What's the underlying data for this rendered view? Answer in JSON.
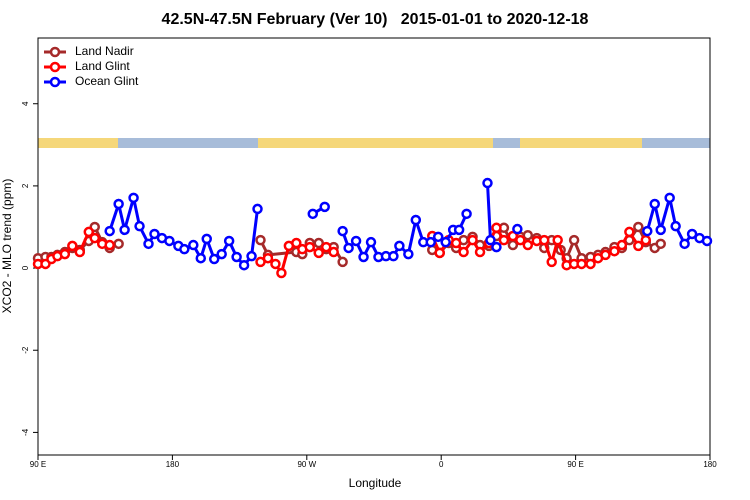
{
  "chart_data": {
    "type": "line",
    "title": "42.5N-47.5N February (Ver 10)   2015-01-01 to 2020-12-18",
    "x_label": "Longitude",
    "y_label": "XCO2 - MLO trend (ppm)",
    "xlim": [
      90,
      540
    ],
    "ylim": [
      -4.55,
      5.6
    ],
    "xticks": [
      {
        "value": 90,
        "label": "90 E"
      },
      180,
      {
        "value": 270,
        "label": "90 W"
      },
      {
        "value": 360,
        "label": "0"
      },
      {
        "value": 450,
        "label": "90 E"
      },
      {
        "value": 540,
        "label": "180"
      }
    ],
    "yticks": [
      -4,
      -2,
      0,
      2,
      4
    ],
    "legend": "top-left",
    "series": [
      {
        "name": "Land Nadir",
        "color": "#a52a2a",
        "x": [
          90,
          95,
          99,
          103,
          108,
          113,
          118,
          124,
          128,
          133,
          138,
          144,
          null,
          239,
          244,
          263,
          267,
          272,
          278,
          283,
          288,
          294,
          null,
          354,
          359,
          365,
          370,
          375,
          381,
          386,
          392,
          397,
          402,
          408,
          413,
          418,
          424,
          429,
          434,
          440,
          444,
          449,
          454,
          460,
          465,
          470,
          476,
          481,
          486,
          492,
          497,
          503,
          507
        ],
        "values": [
          0.24,
          0.27,
          0.27,
          0.32,
          0.39,
          0.49,
          0.44,
          0.66,
          1.0,
          0.63,
          0.49,
          0.59,
          null,
          0.68,
          0.32,
          0.39,
          0.34,
          0.61,
          0.61,
          0.46,
          0.51,
          0.15,
          null,
          0.44,
          0.37,
          0.61,
          0.49,
          0.68,
          0.76,
          0.56,
          0.54,
          0.78,
          0.98,
          0.56,
          0.76,
          0.8,
          0.73,
          0.49,
          0.68,
          0.44,
          0.24,
          0.68,
          0.24,
          0.27,
          0.32,
          0.39,
          0.51,
          0.49,
          0.68,
          1.0,
          0.63,
          0.49,
          0.59
        ]
      },
      {
        "name": "Land Glint",
        "color": "#ff0000",
        "x": [
          90,
          95,
          99,
          103,
          108,
          113,
          118,
          124,
          128,
          133,
          138,
          null,
          239,
          244,
          249,
          253,
          258,
          263,
          267,
          272,
          278,
          283,
          288,
          null,
          354,
          359,
          365,
          370,
          375,
          381,
          386,
          392,
          397,
          402,
          408,
          413,
          418,
          424,
          429,
          434,
          438,
          444,
          449,
          454,
          460,
          465,
          470,
          476,
          481,
          486,
          492,
          497
        ],
        "values": [
          0.1,
          0.1,
          0.22,
          0.29,
          0.34,
          0.54,
          0.39,
          0.88,
          0.73,
          0.59,
          0.56,
          null,
          0.15,
          0.24,
          0.1,
          -0.12,
          0.54,
          0.61,
          0.46,
          0.51,
          0.37,
          0.51,
          0.39,
          null,
          0.78,
          0.37,
          0.68,
          0.61,
          0.39,
          0.68,
          0.39,
          0.61,
          0.98,
          0.68,
          0.78,
          0.68,
          0.56,
          0.66,
          0.68,
          0.15,
          0.68,
          0.07,
          0.1,
          0.1,
          0.1,
          0.24,
          0.32,
          0.41,
          0.56,
          0.88,
          0.54,
          0.68
        ]
      },
      {
        "name": "Ocean Glint",
        "color": "#0000ff",
        "x": [
          138,
          144,
          148,
          154,
          158,
          164,
          168,
          173,
          178,
          184,
          188,
          194,
          199,
          203,
          208,
          213,
          218,
          223,
          228,
          233,
          237,
          null,
          274,
          282,
          null,
          294,
          298,
          303,
          308,
          313,
          318,
          323,
          328,
          332,
          338,
          343,
          348,
          353,
          358,
          363,
          368,
          372,
          377,
          null,
          391,
          393,
          397,
          null,
          411,
          null,
          498,
          503,
          507,
          513,
          517,
          523,
          528,
          533,
          538
        ],
        "values": [
          0.9,
          1.56,
          0.93,
          1.71,
          1.02,
          0.59,
          0.83,
          0.73,
          0.66,
          0.54,
          0.46,
          0.56,
          0.24,
          0.71,
          0.22,
          0.34,
          0.66,
          0.27,
          0.07,
          0.29,
          1.44,
          null,
          1.32,
          1.49,
          null,
          0.9,
          0.49,
          0.66,
          0.27,
          0.63,
          0.27,
          0.29,
          0.29,
          0.54,
          0.34,
          1.17,
          0.63,
          0.63,
          0.76,
          0.63,
          0.93,
          0.93,
          1.32,
          null,
          2.07,
          0.68,
          0.51,
          null,
          0.95,
          null,
          0.9,
          1.56,
          0.93,
          1.71,
          1.02,
          0.59,
          0.83,
          0.73,
          0.66
        ]
      }
    ]
  }
}
